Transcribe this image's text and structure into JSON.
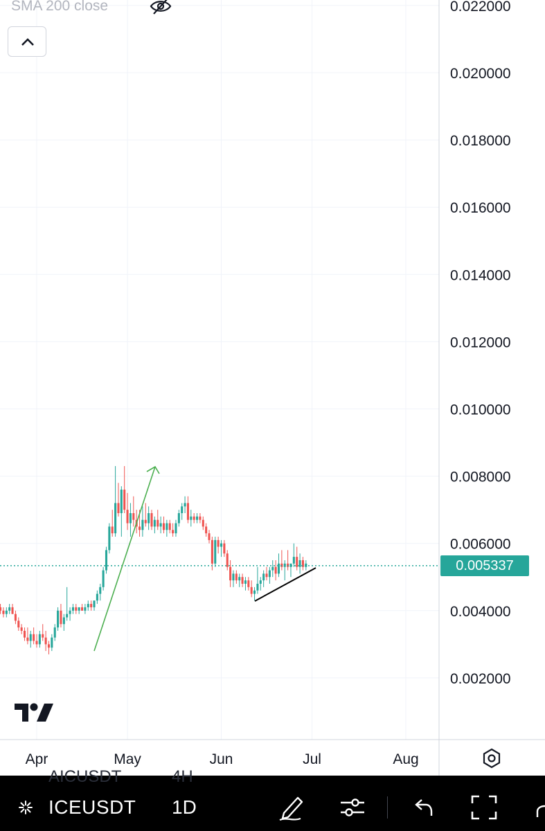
{
  "indicator": {
    "label": "SMA 200 close",
    "visibility_icon": "eye-crossed-icon"
  },
  "collapse_icon": "chevron-up-icon",
  "chart_data": {
    "type": "candlestick",
    "symbol": "ICEUSDT",
    "interval": "1D",
    "y_ticks": [
      "0.022000",
      "0.020000",
      "0.018000",
      "0.016000",
      "0.014000",
      "0.012000",
      "0.010000",
      "0.008000",
      "0.006000",
      "0.004000",
      "0.002000"
    ],
    "y_tick_values": [
      0.022,
      0.02,
      0.018,
      0.016,
      0.014,
      0.012,
      0.01,
      0.008,
      0.006,
      0.004,
      0.002
    ],
    "ylim": [
      0.0,
      0.0222
    ],
    "x_ticks": [
      "Apr",
      "May",
      "Jun",
      "Jul",
      "Aug"
    ],
    "x_tick_days": [
      0,
      30,
      61,
      91,
      122
    ],
    "xlim": [
      -12,
      137
    ],
    "last_price": {
      "label": "0.005337",
      "value": 0.005337
    },
    "colors": {
      "up": "#26a69a",
      "down": "#ef5350",
      "last_price": "#26a69a",
      "arrow": "#4caf50",
      "trendline": "#000000"
    },
    "candles": [
      [
        -12,
        0.0041,
        0.0042,
        0.0039,
        0.004
      ],
      [
        -11,
        0.004,
        0.0041,
        0.0038,
        0.0039
      ],
      [
        -10,
        0.0039,
        0.0041,
        0.0038,
        0.004
      ],
      [
        -9,
        0.004,
        0.0042,
        0.0039,
        0.0041
      ],
      [
        -8,
        0.0041,
        0.0042,
        0.0039,
        0.0039
      ],
      [
        -7,
        0.0039,
        0.004,
        0.0036,
        0.0037
      ],
      [
        -6,
        0.0037,
        0.0038,
        0.0034,
        0.0035
      ],
      [
        -5,
        0.0035,
        0.0036,
        0.0033,
        0.0034
      ],
      [
        -4,
        0.0034,
        0.0035,
        0.0031,
        0.0032
      ],
      [
        -3,
        0.0032,
        0.0035,
        0.003,
        0.0031
      ],
      [
        -2,
        0.0031,
        0.0034,
        0.0029,
        0.0033
      ],
      [
        -1,
        0.0033,
        0.0035,
        0.003,
        0.0031
      ],
      [
        0,
        0.0031,
        0.0033,
        0.0029,
        0.003
      ],
      [
        1,
        0.003,
        0.0034,
        0.0029,
        0.0033
      ],
      [
        2,
        0.0033,
        0.0036,
        0.0031,
        0.0032
      ],
      [
        3,
        0.0032,
        0.0034,
        0.0028,
        0.003
      ],
      [
        4,
        0.003,
        0.0031,
        0.0027,
        0.0029
      ],
      [
        5,
        0.0029,
        0.0033,
        0.0028,
        0.0032
      ],
      [
        6,
        0.0032,
        0.0036,
        0.0031,
        0.0035
      ],
      [
        7,
        0.0035,
        0.0041,
        0.0034,
        0.004
      ],
      [
        8,
        0.004,
        0.0042,
        0.0035,
        0.0036
      ],
      [
        9,
        0.0036,
        0.0039,
        0.0034,
        0.0038
      ],
      [
        10,
        0.0038,
        0.0047,
        0.0037,
        0.0039
      ],
      [
        11,
        0.0039,
        0.0041,
        0.0037,
        0.004
      ],
      [
        12,
        0.004,
        0.0042,
        0.0039,
        0.0041
      ],
      [
        13,
        0.0041,
        0.0042,
        0.0039,
        0.004
      ],
      [
        14,
        0.004,
        0.0041,
        0.0039,
        0.0041
      ],
      [
        15,
        0.0041,
        0.0042,
        0.004,
        0.004
      ],
      [
        16,
        0.004,
        0.0042,
        0.0039,
        0.0041
      ],
      [
        17,
        0.0041,
        0.0043,
        0.004,
        0.0042
      ],
      [
        18,
        0.0042,
        0.0043,
        0.004,
        0.0041
      ],
      [
        19,
        0.0041,
        0.0043,
        0.004,
        0.0043
      ],
      [
        20,
        0.0043,
        0.0046,
        0.0042,
        0.0045
      ],
      [
        21,
        0.0045,
        0.0048,
        0.0043,
        0.0047
      ],
      [
        22,
        0.0047,
        0.0053,
        0.0046,
        0.0052
      ],
      [
        23,
        0.0052,
        0.0059,
        0.0051,
        0.0058
      ],
      [
        24,
        0.0058,
        0.0066,
        0.0057,
        0.0065
      ],
      [
        25,
        0.0065,
        0.007,
        0.0062,
        0.0063
      ],
      [
        26,
        0.0063,
        0.0083,
        0.0062,
        0.0072
      ],
      [
        27,
        0.0072,
        0.0078,
        0.0068,
        0.0069
      ],
      [
        28,
        0.0069,
        0.0077,
        0.0062,
        0.0076
      ],
      [
        29,
        0.0076,
        0.0083,
        0.0069,
        0.007
      ],
      [
        30,
        0.007,
        0.0075,
        0.0064,
        0.0066
      ],
      [
        31,
        0.0066,
        0.0072,
        0.0062,
        0.0069
      ],
      [
        32,
        0.0069,
        0.0074,
        0.0065,
        0.0067
      ],
      [
        33,
        0.0067,
        0.007,
        0.0063,
        0.0065
      ],
      [
        34,
        0.0065,
        0.007,
        0.0062,
        0.0064
      ],
      [
        35,
        0.0064,
        0.0071,
        0.0062,
        0.0067
      ],
      [
        36,
        0.0067,
        0.0072,
        0.0065,
        0.0066
      ],
      [
        37,
        0.0066,
        0.0071,
        0.0064,
        0.0069
      ],
      [
        38,
        0.0069,
        0.007,
        0.0064,
        0.0065
      ],
      [
        39,
        0.0065,
        0.0068,
        0.0063,
        0.0067
      ],
      [
        40,
        0.0067,
        0.007,
        0.0064,
        0.0065
      ],
      [
        41,
        0.0065,
        0.0068,
        0.0063,
        0.0066
      ],
      [
        42,
        0.0066,
        0.0068,
        0.0063,
        0.0064
      ],
      [
        43,
        0.0064,
        0.0067,
        0.0062,
        0.0066
      ],
      [
        44,
        0.0066,
        0.0067,
        0.0063,
        0.0064
      ],
      [
        45,
        0.0064,
        0.0066,
        0.0062,
        0.0063
      ],
      [
        46,
        0.0063,
        0.0067,
        0.0062,
        0.0066
      ],
      [
        47,
        0.0066,
        0.007,
        0.0065,
        0.0069
      ],
      [
        48,
        0.0069,
        0.0072,
        0.0067,
        0.0071
      ],
      [
        49,
        0.0071,
        0.0074,
        0.0069,
        0.0072
      ],
      [
        50,
        0.0072,
        0.0074,
        0.0066,
        0.0067
      ],
      [
        51,
        0.0067,
        0.007,
        0.0065,
        0.0068
      ],
      [
        52,
        0.0068,
        0.0069,
        0.0066,
        0.0067
      ],
      [
        53,
        0.0067,
        0.0069,
        0.0066,
        0.0068
      ],
      [
        54,
        0.0068,
        0.0069,
        0.0066,
        0.0067
      ],
      [
        55,
        0.0067,
        0.0068,
        0.0064,
        0.0065
      ],
      [
        56,
        0.0065,
        0.0066,
        0.0062,
        0.0063
      ],
      [
        57,
        0.0063,
        0.0064,
        0.006,
        0.0061
      ],
      [
        58,
        0.0061,
        0.0062,
        0.0052,
        0.0054
      ],
      [
        59,
        0.0054,
        0.0062,
        0.0053,
        0.0061
      ],
      [
        60,
        0.0061,
        0.0062,
        0.0057,
        0.0059
      ],
      [
        61,
        0.0059,
        0.0061,
        0.0056,
        0.006
      ],
      [
        62,
        0.006,
        0.0061,
        0.0056,
        0.0057
      ],
      [
        63,
        0.0057,
        0.0058,
        0.0052,
        0.0053
      ],
      [
        64,
        0.0053,
        0.0055,
        0.0047,
        0.0049
      ],
      [
        65,
        0.0049,
        0.0052,
        0.0047,
        0.0051
      ],
      [
        66,
        0.0051,
        0.0052,
        0.0048,
        0.0049
      ],
      [
        67,
        0.0049,
        0.0051,
        0.0047,
        0.005
      ],
      [
        68,
        0.005,
        0.0051,
        0.0047,
        0.0048
      ],
      [
        69,
        0.0048,
        0.005,
        0.0046,
        0.0049
      ],
      [
        70,
        0.0049,
        0.005,
        0.0046,
        0.0047
      ],
      [
        71,
        0.0047,
        0.0049,
        0.0044,
        0.0045
      ],
      [
        72,
        0.0045,
        0.0047,
        0.0043,
        0.0046
      ],
      [
        73,
        0.0046,
        0.0053,
        0.0045,
        0.0048
      ],
      [
        74,
        0.0048,
        0.005,
        0.0046,
        0.0049
      ],
      [
        75,
        0.0049,
        0.0052,
        0.0047,
        0.0051
      ],
      [
        76,
        0.0051,
        0.0053,
        0.0049,
        0.005
      ],
      [
        77,
        0.005,
        0.0053,
        0.0048,
        0.0052
      ],
      [
        78,
        0.0052,
        0.0055,
        0.005,
        0.0053
      ],
      [
        79,
        0.0053,
        0.0055,
        0.0049,
        0.0051
      ],
      [
        80,
        0.0051,
        0.0057,
        0.005,
        0.0054
      ],
      [
        81,
        0.0054,
        0.0058,
        0.0052,
        0.0053
      ],
      [
        82,
        0.0053,
        0.0055,
        0.0049,
        0.0054
      ],
      [
        83,
        0.0054,
        0.0058,
        0.0052,
        0.0053
      ],
      [
        84,
        0.0053,
        0.0054,
        0.005,
        0.0054
      ],
      [
        85,
        0.0054,
        0.006,
        0.0053,
        0.0056
      ],
      [
        86,
        0.0056,
        0.0059,
        0.0052,
        0.0053
      ],
      [
        87,
        0.0053,
        0.0057,
        0.0051,
        0.0055
      ],
      [
        88,
        0.0055,
        0.0056,
        0.0052,
        0.0053
      ],
      [
        89,
        0.0053,
        0.0055,
        0.0052,
        0.0054
      ]
    ]
  },
  "toolbar": {
    "symbol": "ICEUSDT",
    "interval": "1D",
    "ghost_symbol": "AICUSDT",
    "ghost_interval": "4H",
    "icons": [
      "symbol-icon",
      "pencil-icon",
      "indicators-icon",
      "undo-icon",
      "fullscreen-icon"
    ]
  }
}
